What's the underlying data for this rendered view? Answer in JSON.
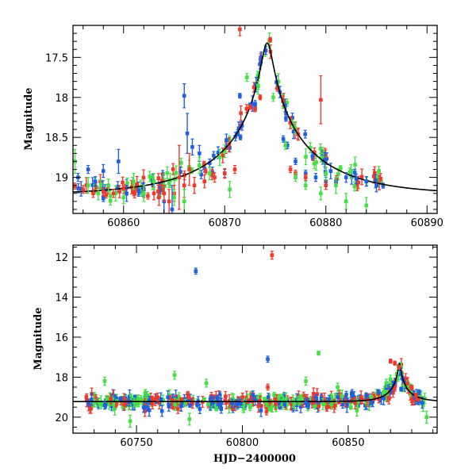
{
  "colors": {
    "blue": "#1f5fe0",
    "red": "#ee3a2c",
    "green": "#45e045",
    "model": "#000000"
  },
  "chart_data": [
    {
      "type": "scatter",
      "title": "",
      "xlabel": "",
      "ylabel": "Magnitude",
      "xlim": [
        60855,
        60891
      ],
      "ylim": [
        19.45,
        17.1
      ],
      "inverted_y": true,
      "xticks": [
        60860,
        60870,
        60880,
        60890
      ],
      "yticks": [
        17.5,
        18,
        18.5,
        19
      ],
      "model": {
        "peak_x": 60874.2,
        "peak_mag": 17.32,
        "base_mag": 19.22,
        "u0": 0.055,
        "tE": 9.5
      },
      "series": [
        {
          "color": "blue",
          "points": [
            [
              60855.5,
              19.0,
              0.05
            ],
            [
              60856.5,
              18.9,
              0.05
            ],
            [
              60857.2,
              19.05,
              0.06
            ],
            [
              60858.0,
              18.92,
              0.08
            ],
            [
              60859.5,
              18.8,
              0.15
            ],
            [
              60860.3,
              19.2,
              0.1
            ],
            [
              60862.0,
              19.15,
              0.08
            ],
            [
              60864.0,
              19.3,
              0.2
            ],
            [
              60864.8,
              19.4,
              0.3
            ],
            [
              60866.0,
              17.98,
              0.15
            ],
            [
              60866.3,
              18.45,
              0.25
            ],
            [
              60866.8,
              18.62,
              0.1
            ],
            [
              60867.5,
              18.7,
              0.1
            ],
            [
              60870.0,
              18.95,
              0.05
            ],
            [
              60871.5,
              17.98,
              0.03
            ],
            [
              60872.5,
              18.1,
              0.03
            ],
            [
              60873.0,
              18.12,
              0.03
            ],
            [
              60875.8,
              18.52,
              0.04
            ],
            [
              60876.2,
              18.6,
              0.04
            ],
            [
              60877.0,
              18.8,
              0.04
            ],
            [
              60878.0,
              18.95,
              0.04
            ],
            [
              60879.0,
              19.0,
              0.05
            ],
            [
              60880.0,
              19.05,
              0.05
            ],
            [
              60881.0,
              19.05,
              0.05
            ],
            [
              60882.0,
              19.0,
              0.06
            ],
            [
              60883.0,
              19.02,
              0.06
            ],
            [
              60884.0,
              19.05,
              0.06
            ],
            [
              60885.0,
              19.1,
              0.08
            ]
          ]
        },
        {
          "color": "red",
          "points": [
            [
              60856.0,
              19.15,
              0.05
            ],
            [
              60857.0,
              19.2,
              0.05
            ],
            [
              60858.0,
              19.18,
              0.05
            ],
            [
              60859.0,
              19.2,
              0.05
            ],
            [
              60860.0,
              19.15,
              0.05
            ],
            [
              60861.0,
              19.18,
              0.05
            ],
            [
              60862.0,
              19.2,
              0.05
            ],
            [
              60863.0,
              19.2,
              0.08
            ],
            [
              60863.5,
              19.25,
              0.1
            ],
            [
              60864.0,
              19.2,
              0.1
            ],
            [
              60864.5,
              19.3,
              0.15
            ],
            [
              60865.0,
              19.2,
              0.1
            ],
            [
              60865.5,
              19.0,
              0.4
            ],
            [
              60866.0,
              19.1,
              0.15
            ],
            [
              60866.5,
              18.9,
              0.2
            ],
            [
              60867.0,
              19.1,
              0.1
            ],
            [
              60868.0,
              19.05,
              0.08
            ],
            [
              60869.0,
              19.0,
              0.06
            ],
            [
              60870.0,
              18.95,
              0.06
            ],
            [
              60871.0,
              18.9,
              0.05
            ],
            [
              60871.5,
              17.15,
              0.08
            ],
            [
              60872.5,
              18.12,
              0.03
            ],
            [
              60873.0,
              18.15,
              0.03
            ],
            [
              60873.5,
              18.0,
              0.03
            ],
            [
              60874.5,
              17.28,
              0.03
            ],
            [
              60876.5,
              18.9,
              0.04
            ],
            [
              60877.0,
              18.95,
              0.04
            ],
            [
              60878.0,
              19.0,
              0.04
            ],
            [
              60879.5,
              18.03,
              0.3
            ],
            [
              60880.0,
              19.1,
              0.05
            ]
          ]
        },
        {
          "color": "green",
          "points": [
            [
              60855.2,
              18.8,
              0.15
            ],
            [
              60856.5,
              19.1,
              0.1
            ],
            [
              60857.5,
              19.2,
              0.08
            ],
            [
              60858.5,
              19.1,
              0.08
            ],
            [
              60860.0,
              19.25,
              0.08
            ],
            [
              60861.0,
              19.05,
              0.1
            ],
            [
              60862.0,
              19.2,
              0.1
            ],
            [
              60863.0,
              19.05,
              0.1
            ],
            [
              60865.0,
              19.25,
              0.1
            ],
            [
              60866.0,
              19.3,
              0.15
            ],
            [
              60867.5,
              18.85,
              0.1
            ],
            [
              60868.5,
              18.95,
              0.08
            ],
            [
              60869.5,
              18.75,
              0.1
            ],
            [
              60870.5,
              19.15,
              0.1
            ],
            [
              60872.2,
              17.75,
              0.05
            ],
            [
              60873.3,
              17.85,
              0.05
            ],
            [
              60874.8,
              18.0,
              0.05
            ],
            [
              60876.0,
              18.6,
              0.05
            ],
            [
              60877.0,
              19.0,
              0.05
            ],
            [
              60878.0,
              19.1,
              0.05
            ],
            [
              60879.5,
              19.2,
              0.08
            ],
            [
              60880.0,
              18.95,
              0.08
            ],
            [
              60881.0,
              19.1,
              0.1
            ],
            [
              60882.0,
              19.3,
              0.1
            ],
            [
              60884.0,
              19.35,
              0.1
            ]
          ]
        }
      ]
    },
    {
      "type": "scatter",
      "title": "",
      "xlabel": "HJD−2400000",
      "ylabel": "Magnitude",
      "xlim": [
        60720,
        60892
      ],
      "ylim": [
        20.8,
        11.4
      ],
      "inverted_y": true,
      "xticks": [
        60750,
        60800,
        60850
      ],
      "yticks": [
        12,
        14,
        16,
        18,
        20
      ],
      "model": {
        "peak_x": 60874.2,
        "peak_mag": 17.32,
        "base_mag": 19.22,
        "u0": 0.055,
        "tE": 9.5
      },
      "series": [
        {
          "color": "blue",
          "points": [
            [
              60778,
              12.7,
              0.15
            ],
            [
              60812,
              17.1,
              0.15
            ],
            [
              60735,
              19.4,
              0.2
            ],
            [
              60755,
              19.5,
              0.2
            ],
            [
              60790,
              19.6,
              0.2
            ],
            [
              60805,
              18.9,
              0.2
            ],
            [
              60830,
              19.3,
              0.2
            ],
            [
              60845,
              19.0,
              0.2
            ],
            [
              60868,
              18.5,
              0.1
            ],
            [
              60875,
              18.6,
              0.1
            ]
          ]
        },
        {
          "color": "red",
          "points": [
            [
              60814,
              11.9,
              0.2
            ],
            [
              60812,
              18.5,
              0.15
            ],
            [
              60870,
              17.2,
              0.1
            ],
            [
              60872,
              17.3,
              0.1
            ],
            [
              60874,
              17.5,
              0.1
            ],
            [
              60880,
              18.5,
              0.1
            ],
            [
              60882,
              18.9,
              0.1
            ],
            [
              60760,
              19.0,
              0.2
            ],
            [
              60800,
              19.0,
              0.2
            ],
            [
              60840,
              19.5,
              0.2
            ]
          ]
        },
        {
          "color": "green",
          "points": [
            [
              60836,
              16.8,
              0.1
            ],
            [
              60868,
              18.3,
              0.2
            ],
            [
              60870,
              18.1,
              0.2
            ],
            [
              60735,
              18.2,
              0.2
            ],
            [
              60768,
              17.9,
              0.2
            ],
            [
              60783,
              18.3,
              0.2
            ],
            [
              60747,
              20.2,
              0.3
            ],
            [
              60775,
              20.1,
              0.3
            ],
            [
              60887,
              20.0,
              0.3
            ],
            [
              60830,
              18.2,
              0.2
            ],
            [
              60845,
              18.5,
              0.2
            ]
          ]
        }
      ]
    }
  ]
}
